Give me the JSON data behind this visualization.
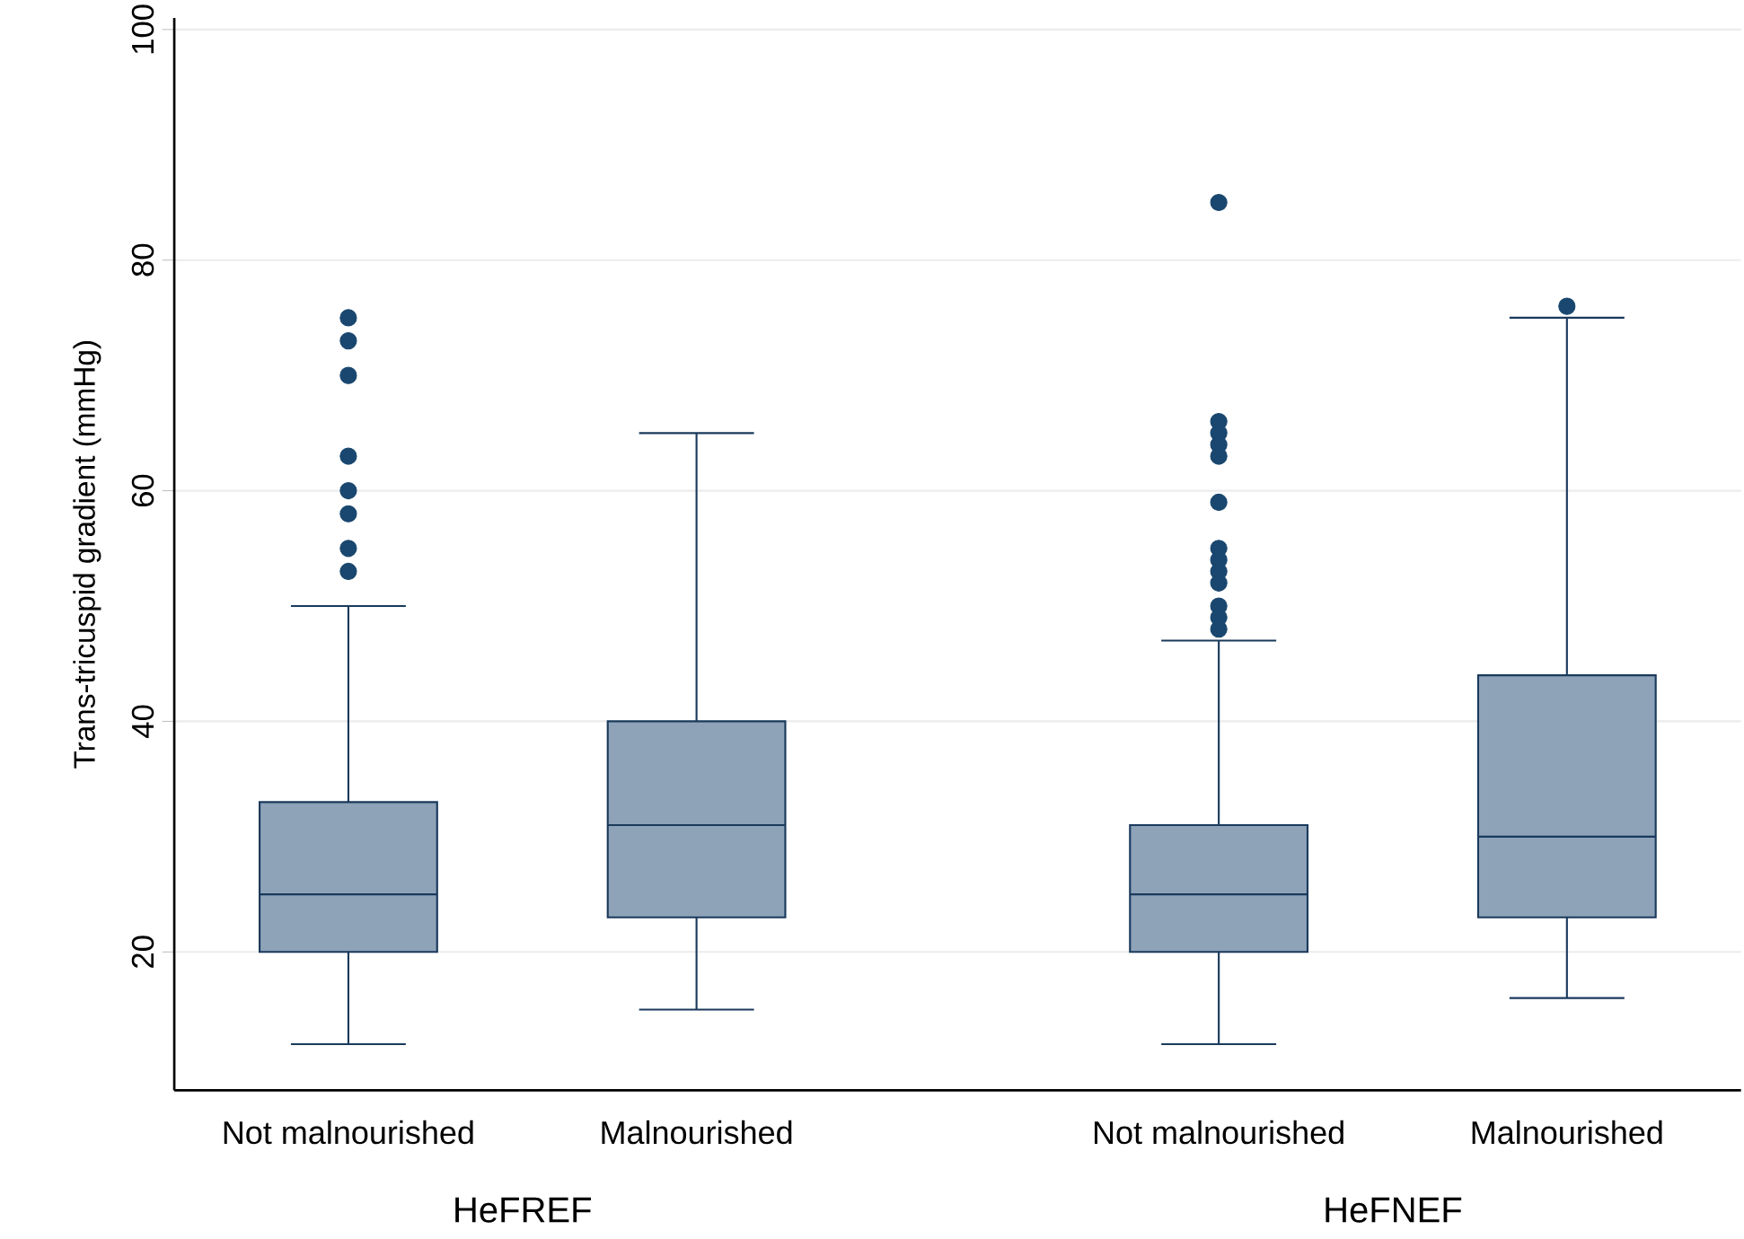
{
  "chart_data": {
    "type": "box",
    "ylabel": "Trans-tricuspid gradient (mmHg)",
    "categories": [
      "Not malnourished",
      "Malnourished",
      "Not malnourished",
      "Malnourished"
    ],
    "boxes": [
      {
        "low": 12,
        "q1": 20,
        "median": 25,
        "q3": 33,
        "high": 50,
        "outliers": [
          75,
          73,
          70,
          63,
          60,
          58,
          55,
          53
        ]
      },
      {
        "low": 15,
        "q1": 23,
        "median": 31,
        "q3": 40,
        "high": 65
      },
      {
        "low": 12,
        "q1": 20,
        "median": 25,
        "q3": 31,
        "high": 47,
        "outliers": [
          85,
          66,
          65,
          64,
          63,
          59,
          55,
          54,
          53,
          52,
          50,
          49,
          48
        ]
      },
      {
        "low": 16,
        "q1": 23,
        "median": 30,
        "q3": 44,
        "high": 75,
        "outliers": [
          76
        ]
      }
    ],
    "color": "#8ea2b8",
    "ylim": [
      8,
      101
    ],
    "yticks": [
      20,
      40,
      60,
      80,
      100
    ],
    "grid": "y",
    "annotations": [
      "HeFREF",
      "HeFNEF"
    ]
  }
}
